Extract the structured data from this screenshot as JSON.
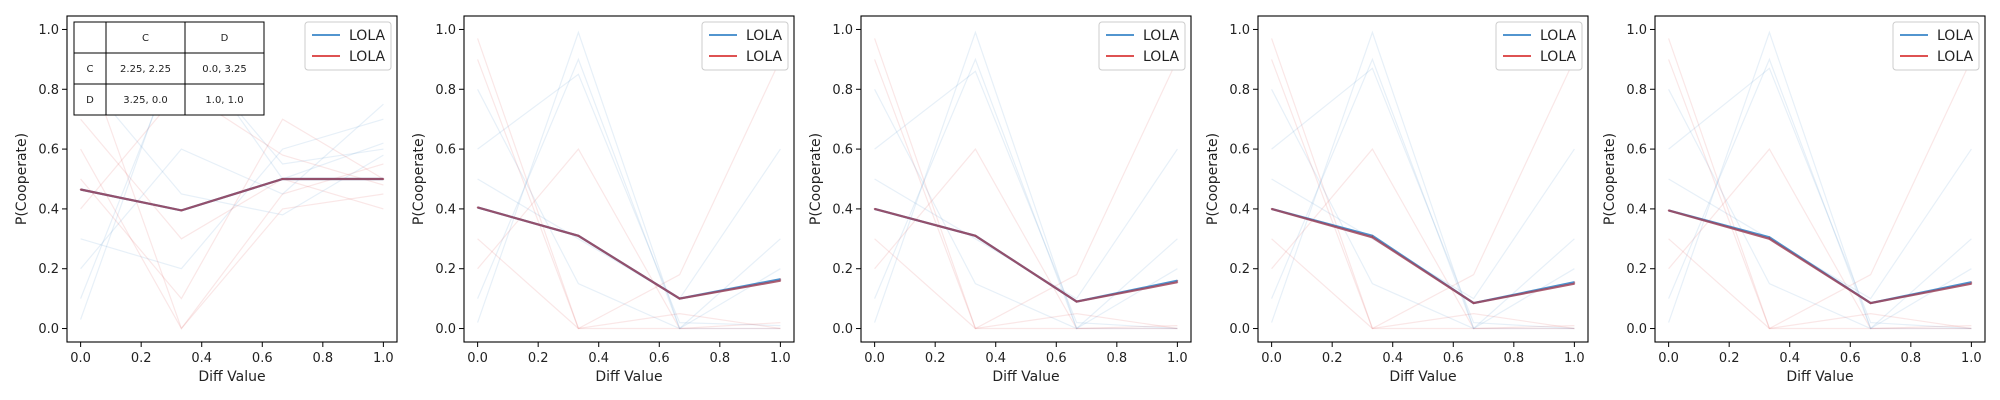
{
  "colors": {
    "series_a": "#3a86c8",
    "series_b": "#d93a3a",
    "overlap": "#a0445a"
  },
  "payoff_table": {
    "col_headers": [
      "",
      "C",
      "D"
    ],
    "rows": [
      {
        "label": "C",
        "cells": [
          "2.25, 2.25",
          "0.0, 3.25"
        ]
      },
      {
        "label": "D",
        "cells": [
          "3.25, 0.0",
          "1.0, 1.0"
        ]
      }
    ]
  },
  "chart_data": [
    {
      "type": "line",
      "xlabel": "Diff Value",
      "ylabel": "P(Cooperate)",
      "xlim": [
        0,
        1
      ],
      "ylim": [
        0,
        1
      ],
      "xticks": [
        "0.0",
        "0.2",
        "0.4",
        "0.6",
        "0.8",
        "1.0"
      ],
      "yticks": [
        "0.0",
        "0.2",
        "0.4",
        "0.6",
        "0.8",
        "1.0"
      ],
      "grid": false,
      "legend_position": "top-right",
      "has_table": true,
      "x": [
        0,
        0.333,
        0.667,
        1.0
      ],
      "series": [
        {
          "name": "LOLA",
          "color": "#3a86c8",
          "values": [
            0.465,
            0.395,
            0.5,
            0.5
          ]
        },
        {
          "name": "LOLA",
          "color": "#d93a3a",
          "values": [
            0.465,
            0.395,
            0.5,
            0.5
          ]
        }
      ],
      "faint_runs": [
        [
          0.03,
          0.98,
          0.5,
          0.62
        ],
        [
          0.6,
          0.0,
          0.45,
          0.55
        ],
        [
          0.3,
          0.2,
          0.6,
          0.7
        ],
        [
          0.95,
          0.0,
          0.4,
          0.45
        ],
        [
          0.1,
          0.95,
          0.55,
          0.6
        ],
        [
          0.7,
          0.3,
          0.5,
          0.4
        ],
        [
          0.2,
          0.6,
          0.45,
          0.75
        ],
        [
          0.5,
          0.1,
          0.7,
          0.5
        ],
        [
          0.85,
          0.45,
          0.38,
          0.58
        ],
        [
          0.4,
          0.8,
          0.58,
          0.48
        ]
      ]
    },
    {
      "type": "line",
      "xlabel": "Diff Value",
      "ylabel": "P(Cooperate)",
      "xlim": [
        0,
        1
      ],
      "ylim": [
        0,
        1
      ],
      "xticks": [
        "0.0",
        "0.2",
        "0.4",
        "0.6",
        "0.8",
        "1.0"
      ],
      "yticks": [
        "0.0",
        "0.2",
        "0.4",
        "0.6",
        "0.8",
        "1.0"
      ],
      "grid": false,
      "legend_position": "top-right",
      "has_table": false,
      "x": [
        0,
        0.333,
        0.667,
        1.0
      ],
      "series": [
        {
          "name": "LOLA",
          "color": "#3a86c8",
          "values": [
            0.405,
            0.31,
            0.1,
            0.165
          ]
        },
        {
          "name": "LOLA",
          "color": "#d93a3a",
          "values": [
            0.405,
            0.31,
            0.1,
            0.16
          ]
        }
      ],
      "faint_runs": [
        [
          0.02,
          0.99,
          0.0,
          0.0
        ],
        [
          0.97,
          0.0,
          0.0,
          0.02
        ],
        [
          0.6,
          0.85,
          0.02,
          0.01
        ],
        [
          0.3,
          0.0,
          0.18,
          0.9
        ],
        [
          0.8,
          0.15,
          0.0,
          0.3
        ],
        [
          0.2,
          0.6,
          0.0,
          0.0
        ],
        [
          0.5,
          0.3,
          0.1,
          0.6
        ],
        [
          0.9,
          0.0,
          0.05,
          0.0
        ],
        [
          0.1,
          0.9,
          0.0,
          0.2
        ]
      ]
    },
    {
      "type": "line",
      "xlabel": "Diff Value",
      "ylabel": "P(Cooperate)",
      "xlim": [
        0,
        1
      ],
      "ylim": [
        0,
        1
      ],
      "xticks": [
        "0.0",
        "0.2",
        "0.4",
        "0.6",
        "0.8",
        "1.0"
      ],
      "yticks": [
        "0.0",
        "0.2",
        "0.4",
        "0.6",
        "0.8",
        "1.0"
      ],
      "grid": false,
      "legend_position": "top-right",
      "has_table": false,
      "x": [
        0,
        0.333,
        0.667,
        1.0
      ],
      "series": [
        {
          "name": "LOLA",
          "color": "#3a86c8",
          "values": [
            0.4,
            0.31,
            0.09,
            0.16
          ]
        },
        {
          "name": "LOLA",
          "color": "#d93a3a",
          "values": [
            0.4,
            0.31,
            0.09,
            0.155
          ]
        }
      ],
      "faint_runs": [
        [
          0.02,
          0.99,
          0.0,
          0.0
        ],
        [
          0.97,
          0.0,
          0.0,
          0.01
        ],
        [
          0.6,
          0.86,
          0.02,
          0.0
        ],
        [
          0.3,
          0.0,
          0.18,
          0.9
        ],
        [
          0.8,
          0.15,
          0.0,
          0.3
        ],
        [
          0.2,
          0.6,
          0.0,
          0.0
        ],
        [
          0.5,
          0.3,
          0.1,
          0.6
        ],
        [
          0.9,
          0.0,
          0.05,
          0.0
        ],
        [
          0.1,
          0.9,
          0.0,
          0.2
        ]
      ]
    },
    {
      "type": "line",
      "xlabel": "Diff Value",
      "ylabel": "P(Cooperate)",
      "xlim": [
        0,
        1
      ],
      "ylim": [
        0,
        1
      ],
      "xticks": [
        "0.0",
        "0.2",
        "0.4",
        "0.6",
        "0.8",
        "1.0"
      ],
      "yticks": [
        "0.0",
        "0.2",
        "0.4",
        "0.6",
        "0.8",
        "1.0"
      ],
      "grid": false,
      "legend_position": "top-right",
      "has_table": false,
      "x": [
        0,
        0.333,
        0.667,
        1.0
      ],
      "series": [
        {
          "name": "LOLA",
          "color": "#3a86c8",
          "values": [
            0.4,
            0.31,
            0.085,
            0.155
          ]
        },
        {
          "name": "LOLA",
          "color": "#d93a3a",
          "values": [
            0.4,
            0.305,
            0.085,
            0.15
          ]
        }
      ],
      "faint_runs": [
        [
          0.02,
          0.99,
          0.0,
          0.0
        ],
        [
          0.97,
          0.0,
          0.0,
          0.01
        ],
        [
          0.6,
          0.87,
          0.02,
          0.0
        ],
        [
          0.3,
          0.0,
          0.18,
          0.9
        ],
        [
          0.8,
          0.15,
          0.0,
          0.3
        ],
        [
          0.2,
          0.6,
          0.0,
          0.0
        ],
        [
          0.5,
          0.3,
          0.1,
          0.6
        ],
        [
          0.9,
          0.0,
          0.05,
          0.0
        ],
        [
          0.1,
          0.9,
          0.0,
          0.2
        ]
      ]
    },
    {
      "type": "line",
      "xlabel": "Diff Value",
      "ylabel": "P(Cooperate)",
      "xlim": [
        0,
        1
      ],
      "ylim": [
        0,
        1
      ],
      "xticks": [
        "0.0",
        "0.2",
        "0.4",
        "0.6",
        "0.8",
        "1.0"
      ],
      "yticks": [
        "0.0",
        "0.2",
        "0.4",
        "0.6",
        "0.8",
        "1.0"
      ],
      "grid": false,
      "legend_position": "top-right",
      "has_table": false,
      "x": [
        0,
        0.333,
        0.667,
        1.0
      ],
      "series": [
        {
          "name": "LOLA",
          "color": "#3a86c8",
          "values": [
            0.395,
            0.305,
            0.085,
            0.155
          ]
        },
        {
          "name": "LOLA",
          "color": "#d93a3a",
          "values": [
            0.395,
            0.3,
            0.085,
            0.15
          ]
        }
      ],
      "faint_runs": [
        [
          0.02,
          0.99,
          0.0,
          0.0
        ],
        [
          0.97,
          0.0,
          0.0,
          0.01
        ],
        [
          0.6,
          0.87,
          0.02,
          0.0
        ],
        [
          0.3,
          0.0,
          0.18,
          0.9
        ],
        [
          0.8,
          0.15,
          0.0,
          0.3
        ],
        [
          0.2,
          0.6,
          0.0,
          0.0
        ],
        [
          0.5,
          0.3,
          0.1,
          0.6
        ],
        [
          0.9,
          0.0,
          0.05,
          0.0
        ],
        [
          0.1,
          0.9,
          0.0,
          0.2
        ]
      ]
    }
  ]
}
